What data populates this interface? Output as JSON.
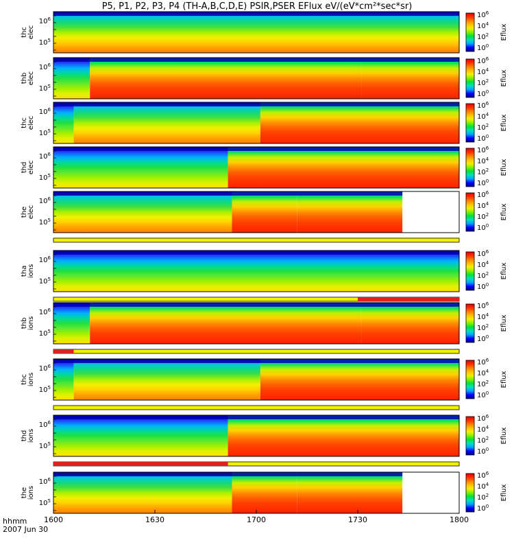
{
  "header": {
    "title": "P5, P1, P2, P3, P4 (TH-A,B,C,D,E) PSIR,PSER EFlux eV/(eV*cm²*sec*sr)"
  },
  "footer": {
    "time_format": "hhmm",
    "date": "2007 Jun 30"
  },
  "chart_data": {
    "type": "heatmap",
    "x_axis": {
      "range": [
        "1600",
        "1800"
      ],
      "tick_labels": [
        "1600",
        "1630",
        "1700",
        "1730",
        "1800"
      ]
    },
    "y_axis": {
      "scale": "log"
    },
    "colorbar": {
      "label": "Eflux",
      "scale": "log",
      "tick_labels": [
        {
          "base": "10",
          "exp": "0"
        },
        {
          "base": "10",
          "exp": "2"
        },
        {
          "base": "10",
          "exp": "4"
        },
        {
          "base": "10",
          "exp": "6"
        }
      ],
      "colors": [
        "#000080",
        "#0000ff",
        "#00a0ff",
        "#00e0c0",
        "#00e040",
        "#80f000",
        "#f0f000",
        "#ffc000",
        "#ff8000",
        "#ff3000",
        "#e00000"
      ]
    },
    "panels": [
      {
        "probe": "thc",
        "species": "elec",
        "label_top": "thc",
        "label_bottom": "elec",
        "y_ticks": [
          {
            "base": "10",
            "exp": "6"
          },
          {
            "base": "10",
            "exp": "5"
          }
        ],
        "data_end_fraction": 1.0,
        "quality_bar": null
      },
      {
        "probe": "thb",
        "species": "elec",
        "label_top": "thb",
        "label_bottom": "elec",
        "y_ticks": [
          {
            "base": "10",
            "exp": "6"
          },
          {
            "base": "10",
            "exp": "5"
          }
        ],
        "data_end_fraction": 1.0,
        "quality_bar": null
      },
      {
        "probe": "thc",
        "species": "elec",
        "label_top": "thc",
        "label_bottom": "elec",
        "y_ticks": [
          {
            "base": "10",
            "exp": "6"
          },
          {
            "base": "10",
            "exp": "5"
          }
        ],
        "data_end_fraction": 1.0,
        "quality_bar": null
      },
      {
        "probe": "thd",
        "species": "elec",
        "label_top": "thd",
        "label_bottom": "elec",
        "y_ticks": [
          {
            "base": "10",
            "exp": "6"
          },
          {
            "base": "10",
            "exp": "5"
          }
        ],
        "data_end_fraction": 1.0,
        "quality_bar": null
      },
      {
        "probe": "the",
        "species": "elec",
        "label_top": "the",
        "label_bottom": "elec",
        "y_ticks": [
          {
            "base": "10",
            "exp": "6"
          },
          {
            "base": "10",
            "exp": "5"
          }
        ],
        "data_end_fraction": 0.86,
        "quality_bar": "yellow"
      },
      {
        "probe": "tha",
        "species": "ions",
        "label_top": "tha",
        "label_bottom": "ions",
        "y_ticks": [
          {
            "base": "10",
            "exp": "6"
          },
          {
            "base": "10",
            "exp": "5"
          }
        ],
        "data_end_fraction": 1.0,
        "quality_bar": "yellow-red-end"
      },
      {
        "probe": "thb",
        "species": "ions",
        "label_top": "thb",
        "label_bottom": "ions",
        "y_ticks": [
          {
            "base": "10",
            "exp": "6"
          },
          {
            "base": "10",
            "exp": "5"
          }
        ],
        "data_end_fraction": 1.0,
        "quality_bar": "red-start-yellow"
      },
      {
        "probe": "thc",
        "species": "ions",
        "label_top": "thc",
        "label_bottom": "ions",
        "y_ticks": [
          {
            "base": "10",
            "exp": "6"
          },
          {
            "base": "10",
            "exp": "5"
          }
        ],
        "data_end_fraction": 1.0,
        "quality_bar": "yellow"
      },
      {
        "probe": "thd",
        "species": "ions",
        "label_top": "thd",
        "label_bottom": "ions",
        "y_ticks": [
          {
            "base": "10",
            "exp": "6"
          },
          {
            "base": "10",
            "exp": "5"
          }
        ],
        "data_end_fraction": 1.0,
        "quality_bar": "red-yellow"
      },
      {
        "probe": "the",
        "species": "ions",
        "label_top": "the",
        "label_bottom": "ions",
        "y_ticks": [
          {
            "base": "10",
            "exp": "6"
          },
          {
            "base": "10",
            "exp": "5"
          }
        ],
        "data_end_fraction": 0.86,
        "quality_bar": null
      }
    ]
  }
}
